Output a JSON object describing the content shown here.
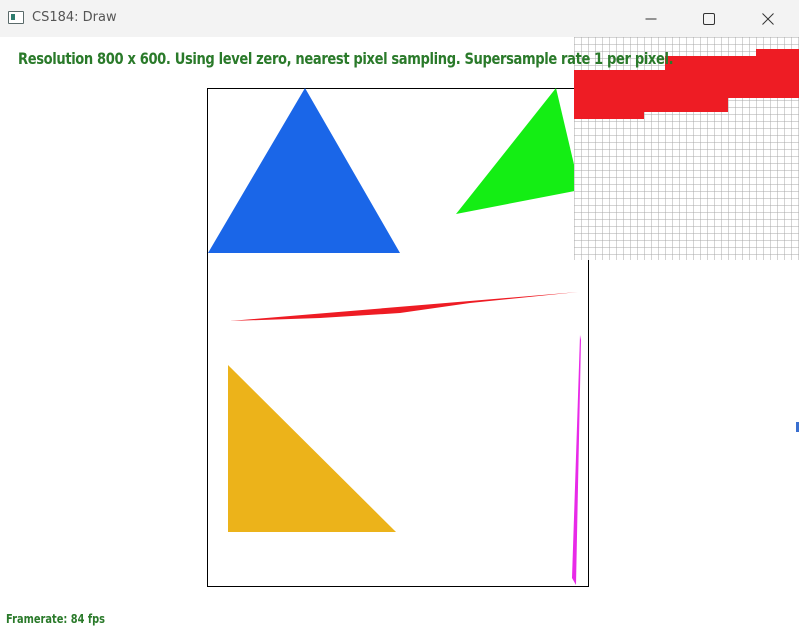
{
  "window": {
    "title": "CS184: Draw"
  },
  "status": {
    "text": "Resolution 800 x 600. Using level zero, nearest pixel sampling. Supersample rate 1 per pixel."
  },
  "footer": {
    "framerate": "Framerate: 84 fps"
  },
  "colors": {
    "text_green": "#2a7a2a",
    "blue": "#1a66e8",
    "green": "#14ee14",
    "red": "#ee1c24",
    "yellow": "#ecb31a",
    "magenta": "#e82ae8",
    "grid": "#a0a0a0"
  },
  "icons": {
    "app": "app-window-icon",
    "minimize": "minimize-icon",
    "maximize": "maximize-icon",
    "close": "close-icon"
  }
}
